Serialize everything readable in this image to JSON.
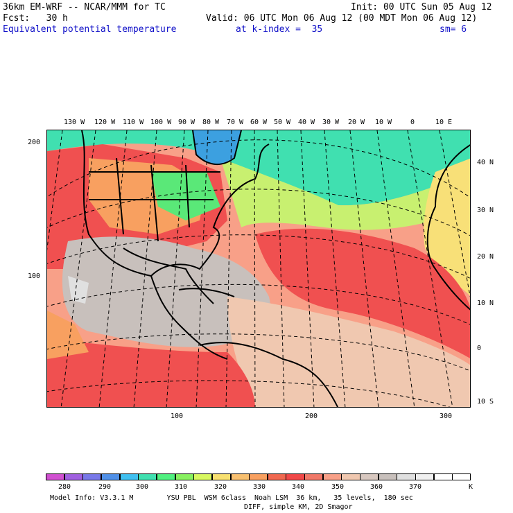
{
  "header": {
    "model_title": "36km EM-WRF -- NCAR/MMM for TC",
    "init_label": "Init: 00 UTC Sun 05 Aug 12",
    "fcst_label": "Fcst:   30 h",
    "valid_label": "Valid: 06 UTC Mon 06 Aug 12 (00 MDT Mon 06 Aug 12)",
    "field_label": "Equivalent potential temperature",
    "level_label": "at k-index =  35",
    "smooth_label": "sm= 6"
  },
  "map": {
    "lon_labels": [
      "130 W",
      "120 W",
      "110 W",
      "100 W",
      "90 W",
      "80 W",
      "70 W",
      "60 W",
      "50 W",
      "40 W",
      "30 W",
      "20 W",
      "10 W",
      "0",
      "10 E"
    ],
    "lat_labels": [
      "40 N",
      "30 N",
      "20 N",
      "10 N",
      "0",
      "10 S"
    ],
    "grid_y_labels": [
      "200",
      "100"
    ],
    "grid_x_labels": [
      "100",
      "200",
      "300"
    ],
    "field_colors": {
      "cold": "#3ca0e0",
      "cool": "#40e0b0",
      "green": "#5ae878",
      "yellow_green": "#c8f070",
      "yellow": "#f8e078",
      "orange": "#f8a060",
      "red": "#f05050",
      "salmon": "#f8a088",
      "tan": "#f0c8b0",
      "gray": "#c8c0bc",
      "light_gray": "#e0e0e0"
    }
  },
  "colorbar": {
    "colors": [
      "#d050d0",
      "#a060e0",
      "#7878e8",
      "#5090e8",
      "#40c0f0",
      "#40e0b0",
      "#50f080",
      "#88f060",
      "#d8f860",
      "#f8e070",
      "#f8c070",
      "#f8a060",
      "#f06850",
      "#f04848",
      "#f07868",
      "#f8a088",
      "#f0c8b0",
      "#d8c8c0",
      "#c8c0bc",
      "#e0e0e0",
      "#f0f0f0",
      "#ffffff",
      "#ffffff"
    ],
    "tick_labels": [
      "280",
      "290",
      "300",
      "310",
      "320",
      "330",
      "340",
      "350",
      "360",
      "370"
    ],
    "unit": "K"
  },
  "footer": {
    "line1": "Model Info: V3.3.1 M        YSU PBL  WSM 6class  Noah LSM  36 km,   35 levels,  180 sec",
    "line2": "DIFF, simple KM, 2D Smagor"
  }
}
